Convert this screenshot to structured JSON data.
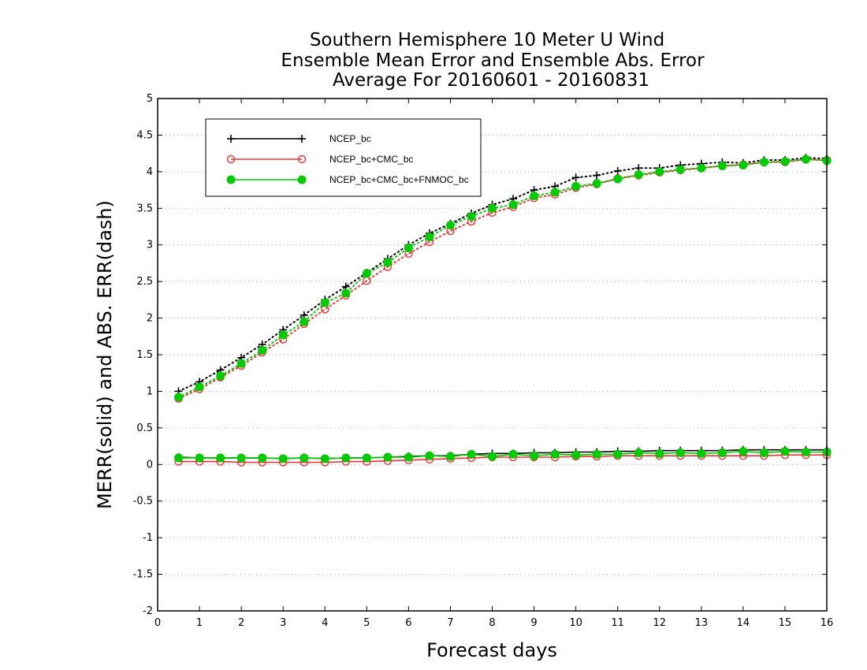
{
  "chart_data": {
    "type": "line",
    "title_lines": [
      "Southern Hemisphere 10 Meter U Wind",
      "Ensemble Mean Error and Ensemble Abs. Error",
      "Average For 20160601 - 20160831"
    ],
    "xlabel": "Forecast days",
    "ylabel": "MERR(solid) and ABS. ERR(dash)",
    "xlim": [
      0,
      16
    ],
    "ylim": [
      -2,
      5
    ],
    "x_ticks": [
      0,
      1,
      2,
      3,
      4,
      5,
      6,
      7,
      8,
      9,
      10,
      11,
      12,
      13,
      14,
      15,
      16
    ],
    "y_ticks": [
      -2,
      -1.5,
      -1,
      -0.5,
      0,
      0.5,
      1,
      1.5,
      2,
      2.5,
      3,
      3.5,
      4,
      4.5,
      5
    ],
    "y_tick_labels": [
      "-2",
      "-1.5",
      "-1",
      "-0.5",
      "0",
      "0.5",
      "1",
      "1.5",
      "2",
      "2.5",
      "3",
      "3.5",
      "4",
      "4.5",
      "5"
    ],
    "grid": "horizontal dotted",
    "legend_position": "top-left",
    "x": [
      0.5,
      1,
      1.5,
      2,
      2.5,
      3,
      3.5,
      4,
      4.5,
      5,
      5.5,
      6,
      6.5,
      7,
      7.5,
      8,
      8.5,
      9,
      9.5,
      10,
      10.5,
      11,
      11.5,
      12,
      12.5,
      13,
      13.5,
      14,
      14.5,
      15,
      15.5,
      16
    ],
    "series": [
      {
        "name": "NCEP_bc",
        "color": "#000000",
        "marker": "plus",
        "merr": [
          0.1,
          0.09,
          0.09,
          0.09,
          0.09,
          0.08,
          0.09,
          0.08,
          0.09,
          0.09,
          0.1,
          0.11,
          0.12,
          0.12,
          0.14,
          0.15,
          0.15,
          0.16,
          0.16,
          0.17,
          0.17,
          0.18,
          0.18,
          0.19,
          0.19,
          0.19,
          0.19,
          0.2,
          0.2,
          0.2,
          0.2,
          0.2
        ],
        "abs_err": [
          1.0,
          1.13,
          1.29,
          1.46,
          1.64,
          1.84,
          2.04,
          2.25,
          2.43,
          2.62,
          2.81,
          3.0,
          3.16,
          3.29,
          3.43,
          3.55,
          3.63,
          3.75,
          3.8,
          3.92,
          3.95,
          4.01,
          4.05,
          4.05,
          4.09,
          4.11,
          4.13,
          4.12,
          4.16,
          4.16,
          4.19,
          4.18
        ]
      },
      {
        "name": "NCEP_bc+CMC_bc",
        "color": "#ee3333",
        "marker": "open-circle",
        "merr": [
          0.04,
          0.04,
          0.04,
          0.03,
          0.03,
          0.03,
          0.03,
          0.03,
          0.04,
          0.04,
          0.05,
          0.06,
          0.07,
          0.08,
          0.09,
          0.1,
          0.1,
          0.1,
          0.1,
          0.11,
          0.11,
          0.12,
          0.12,
          0.12,
          0.12,
          0.12,
          0.12,
          0.12,
          0.12,
          0.13,
          0.13,
          0.13
        ],
        "abs_err": [
          0.9,
          1.03,
          1.19,
          1.35,
          1.53,
          1.71,
          1.92,
          2.12,
          2.31,
          2.51,
          2.7,
          2.88,
          3.04,
          3.19,
          3.32,
          3.44,
          3.52,
          3.64,
          3.69,
          3.78,
          3.83,
          3.91,
          3.95,
          3.99,
          4.02,
          4.05,
          4.08,
          4.1,
          4.13,
          4.13,
          4.17,
          4.16
        ]
      },
      {
        "name": "NCEP_bc+CMC_bc+FNMOC_bc",
        "color": "#00cc00",
        "marker": "filled-circle",
        "merr": [
          0.09,
          0.09,
          0.09,
          0.09,
          0.09,
          0.08,
          0.09,
          0.08,
          0.09,
          0.09,
          0.1,
          0.1,
          0.12,
          0.11,
          0.14,
          0.11,
          0.14,
          0.12,
          0.14,
          0.13,
          0.14,
          0.14,
          0.16,
          0.15,
          0.16,
          0.15,
          0.16,
          0.18,
          0.16,
          0.18,
          0.17,
          0.17
        ],
        "abs_err": [
          0.92,
          1.06,
          1.21,
          1.38,
          1.56,
          1.77,
          1.95,
          2.21,
          2.34,
          2.61,
          2.76,
          2.96,
          3.11,
          3.27,
          3.39,
          3.5,
          3.55,
          3.67,
          3.72,
          3.8,
          3.84,
          3.9,
          3.96,
          4.0,
          4.03,
          4.05,
          4.08,
          4.09,
          4.13,
          4.14,
          4.17,
          4.15
        ]
      }
    ]
  }
}
